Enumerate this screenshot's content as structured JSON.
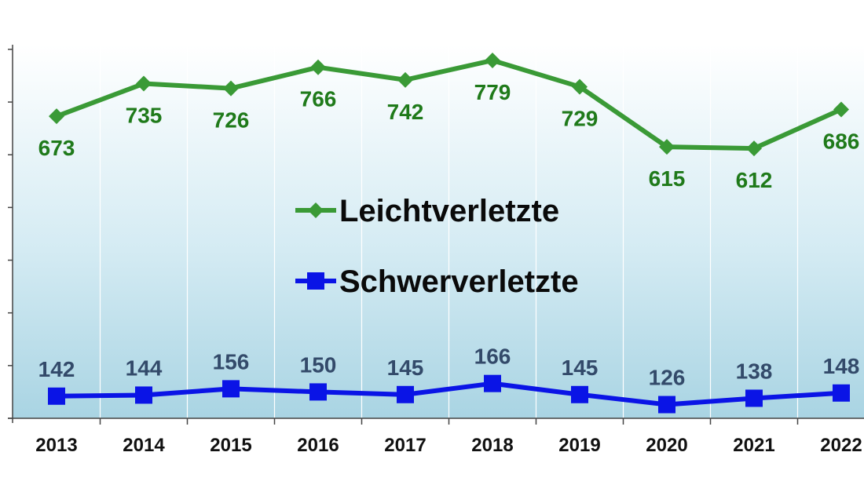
{
  "chart_data": {
    "type": "line",
    "categories": [
      "2013",
      "2014",
      "2015",
      "2016",
      "2017",
      "2018",
      "2019",
      "2020",
      "2021",
      "2022"
    ],
    "series": [
      {
        "name": "Leichtverletzte",
        "values": [
          673,
          735,
          726,
          766,
          742,
          779,
          729,
          615,
          612,
          686
        ],
        "color": "#3a9a36",
        "label_color": "#1f7a1a",
        "marker": "diamond"
      },
      {
        "name": "Schwerverletzte",
        "values": [
          142,
          144,
          156,
          150,
          145,
          166,
          145,
          126,
          138,
          148
        ],
        "color": "#0a14e6",
        "label_color": "#334a6a",
        "marker": "square"
      }
    ],
    "ylim": [
      100,
      800
    ],
    "legend_position": "center",
    "grid": "vertical",
    "background": [
      "#ffffff",
      "#a9d4e3"
    ]
  }
}
